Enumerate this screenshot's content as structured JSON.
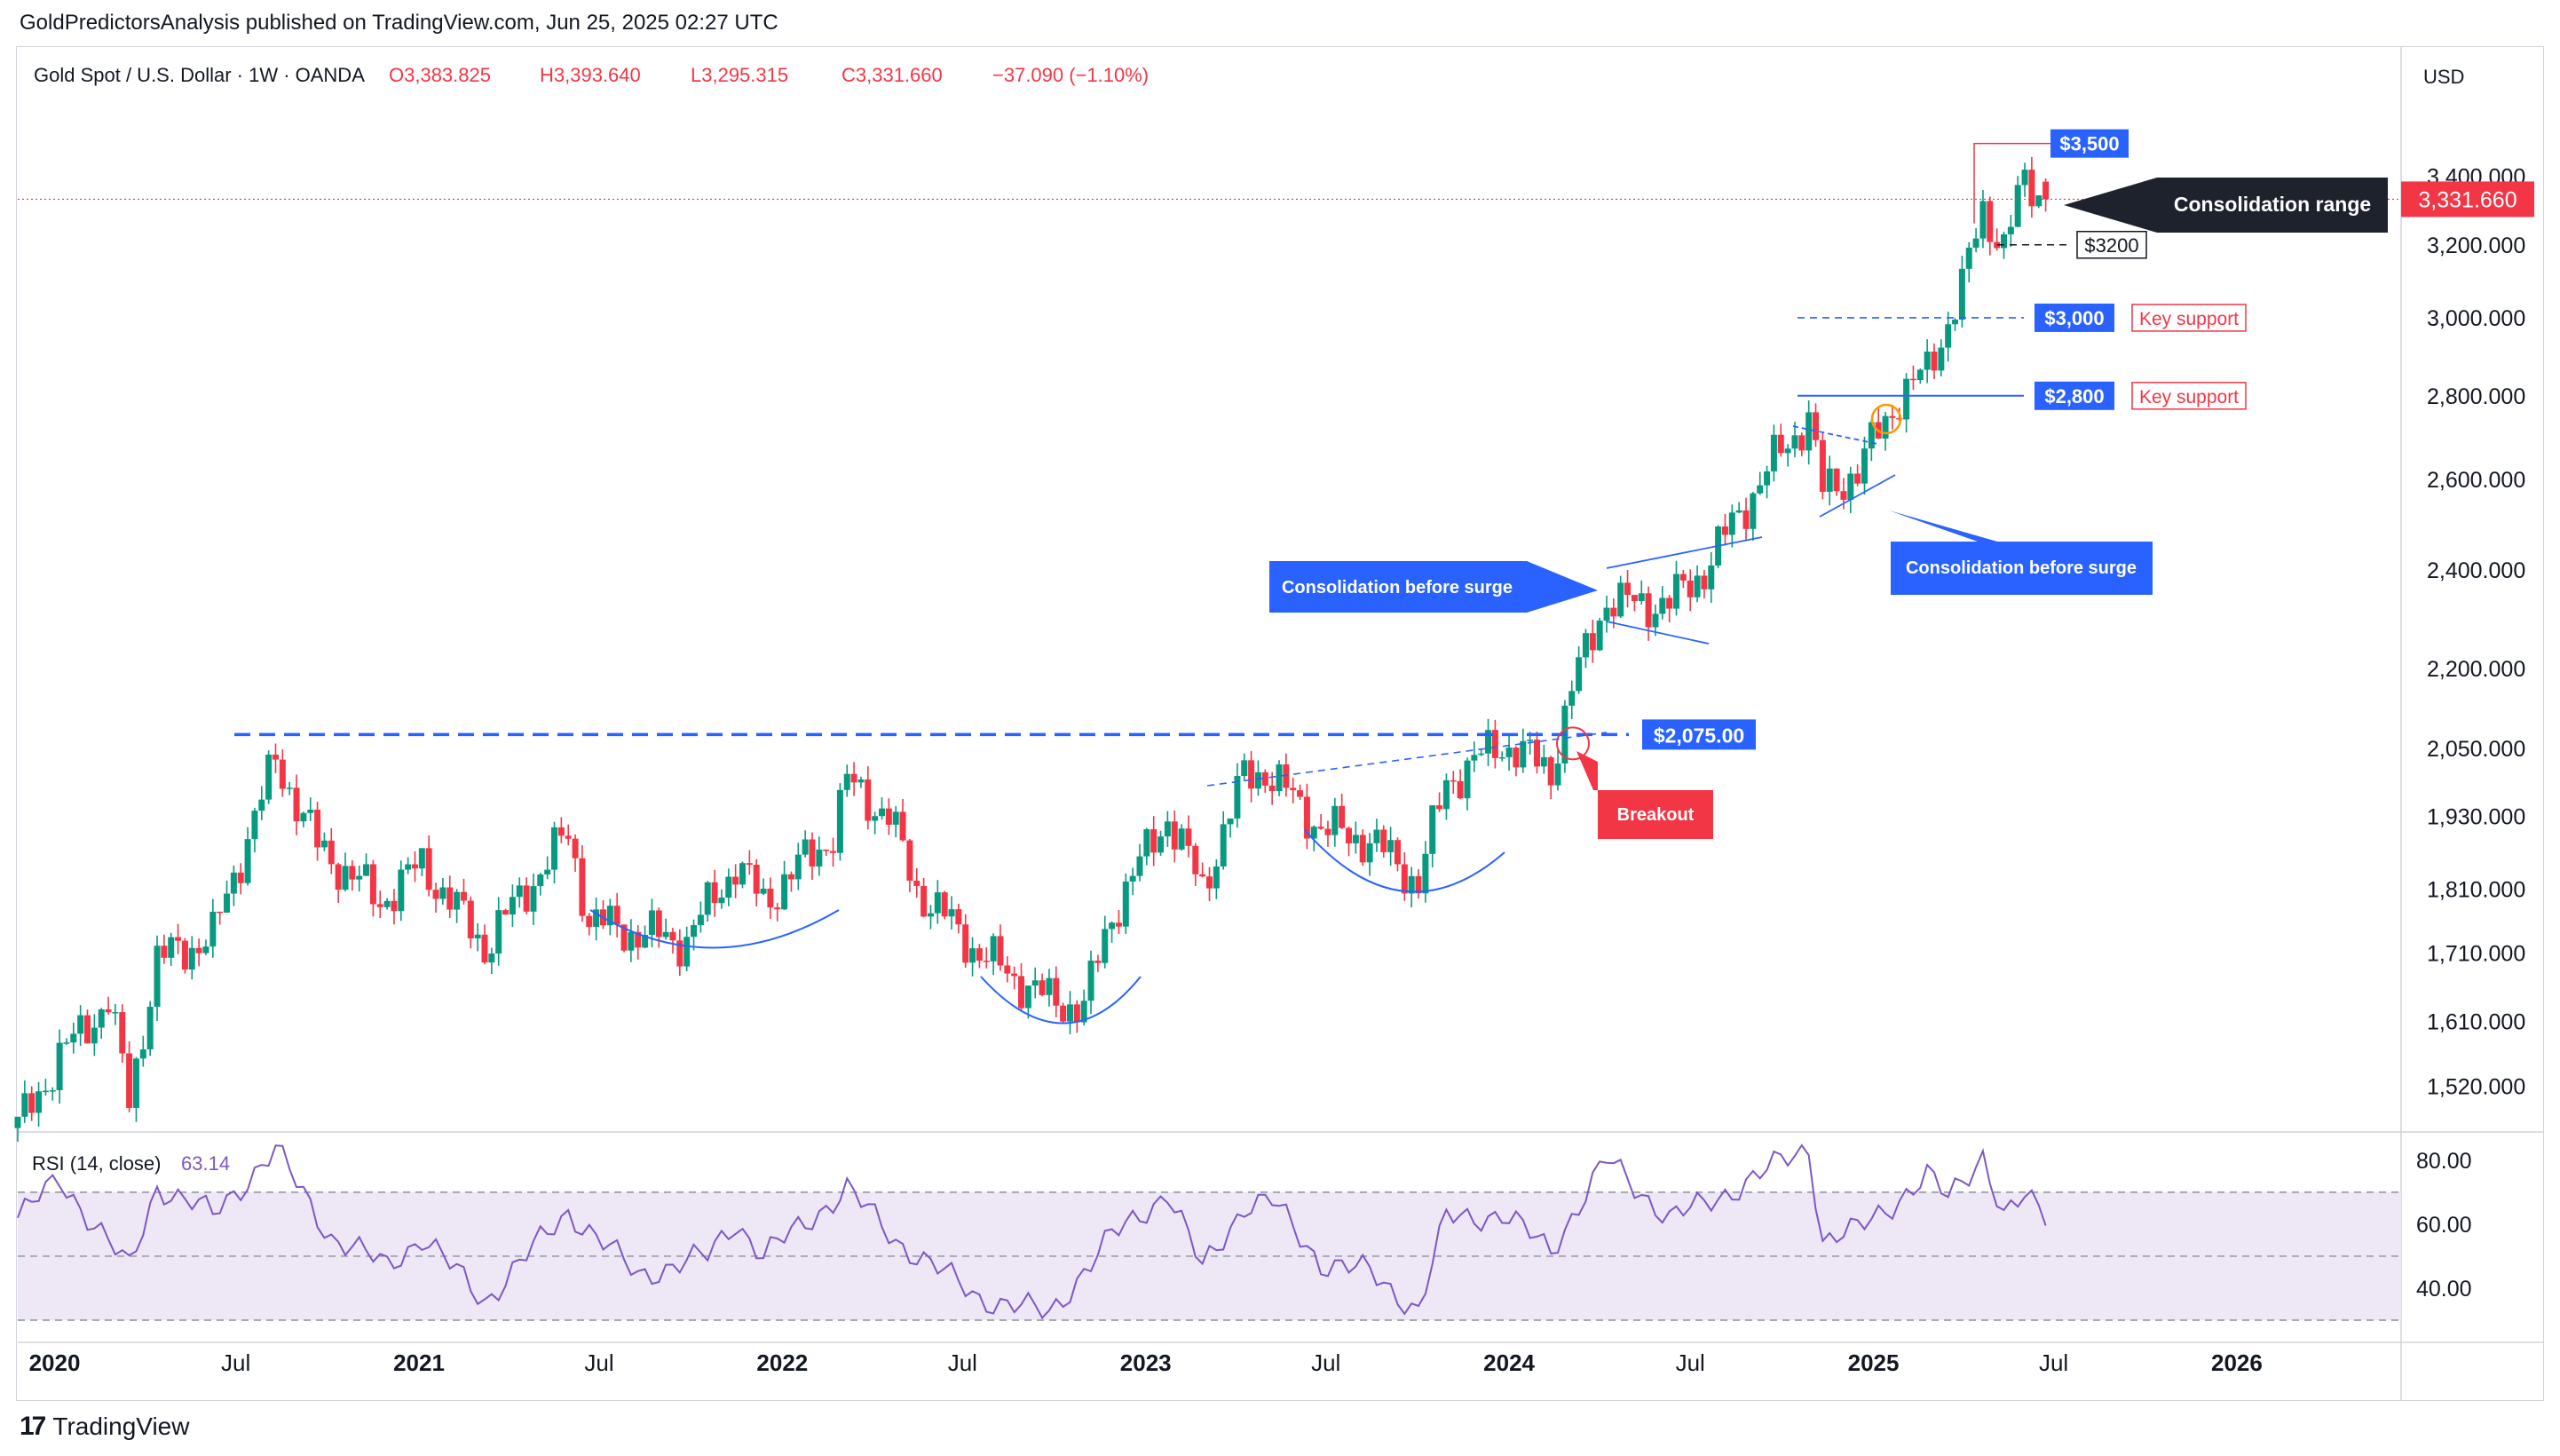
{
  "header": {
    "publisher": "GoldPredictorsAnalysis published on TradingView.com, Jun 25, 2025 02:27 UTC"
  },
  "legend": {
    "symbol": "Gold Spot / U.S. Dollar · 1W · OANDA",
    "open": "O3,383.825",
    "high": "H3,393.640",
    "low": "L3,295.315",
    "close": "C3,331.660",
    "change": "−37.090 (−1.10%)"
  },
  "currency": "USD",
  "footer": {
    "brand": "TradingView"
  },
  "colors": {
    "up": "#089981",
    "down": "#f23645",
    "blue": "#2962ff",
    "rsi_line": "#7e57c2",
    "rsi_fill": "#ede7f6",
    "last_price": "#f23645",
    "dark_label": "#1e222d"
  },
  "chart_data": [
    {
      "type": "candlestick",
      "timeframe": "1W",
      "y_axis": {
        "ticks": [
          "3,400.000",
          "3,200.000",
          "3,000.000",
          "2,800.000",
          "2,600.000",
          "2,400.000",
          "2,200.000",
          "2,050.000",
          "1,930.000",
          "1,810.000",
          "1,710.000",
          "1,610.000",
          "1,520.000"
        ],
        "tick_values": [
          3400,
          3200,
          3000,
          2800,
          2600,
          2400,
          2200,
          2050,
          1930,
          1810,
          1710,
          1610,
          1520
        ],
        "scale": "log",
        "range": [
          1460,
          3560
        ]
      },
      "x_axis": {
        "ticks": [
          "2020",
          "Jul",
          "2021",
          "Jul",
          "2022",
          "Jul",
          "2023",
          "Jul",
          "2024",
          "Jul",
          "2025",
          "Jul",
          "2026"
        ],
        "tick_dates": [
          "2020-01-01",
          "2020-07-01",
          "2021-01-01",
          "2021-07-01",
          "2022-01-01",
          "2022-07-01",
          "2023-01-01",
          "2023-07-01",
          "2024-01-01",
          "2024-07-01",
          "2025-01-01",
          "2025-07-01",
          "2026-01-01"
        ],
        "range": [
          "2019-11-25",
          "2026-06-15"
        ]
      },
      "close_path": [
        {
          "date": "2019-11-25",
          "close": 1465
        },
        {
          "date": "2020-01-06",
          "close": 1560
        },
        {
          "date": "2020-02-24",
          "close": 1640
        },
        {
          "date": "2020-03-16",
          "close": 1500
        },
        {
          "date": "2020-04-13",
          "close": 1700
        },
        {
          "date": "2020-06-08",
          "close": 1735
        },
        {
          "date": "2020-07-27",
          "close": 1960
        },
        {
          "date": "2020-08-10",
          "close": 2030
        },
        {
          "date": "2020-09-21",
          "close": 1880
        },
        {
          "date": "2020-11-23",
          "close": 1790
        },
        {
          "date": "2021-01-04",
          "close": 1850
        },
        {
          "date": "2021-03-08",
          "close": 1720
        },
        {
          "date": "2021-05-31",
          "close": 1900
        },
        {
          "date": "2021-06-21",
          "close": 1760
        },
        {
          "date": "2021-08-09",
          "close": 1740
        },
        {
          "date": "2021-09-27",
          "close": 1730
        },
        {
          "date": "2021-11-15",
          "close": 1850
        },
        {
          "date": "2021-12-13",
          "close": 1790
        },
        {
          "date": "2022-02-21",
          "close": 1900
        },
        {
          "date": "2022-03-07",
          "close": 1990
        },
        {
          "date": "2022-04-18",
          "close": 1930
        },
        {
          "date": "2022-05-16",
          "close": 1810
        },
        {
          "date": "2022-07-18",
          "close": 1710
        },
        {
          "date": "2022-09-26",
          "close": 1640
        },
        {
          "date": "2022-10-31",
          "close": 1630
        },
        {
          "date": "2022-11-28",
          "close": 1770
        },
        {
          "date": "2023-01-23",
          "close": 1930
        },
        {
          "date": "2023-02-27",
          "close": 1810
        },
        {
          "date": "2023-04-10",
          "close": 2000
        },
        {
          "date": "2023-05-01",
          "close": 2010
        },
        {
          "date": "2023-06-26",
          "close": 1910
        },
        {
          "date": "2023-08-14",
          "close": 1890
        },
        {
          "date": "2023-10-02",
          "close": 1820
        },
        {
          "date": "2023-10-30",
          "close": 1990
        },
        {
          "date": "2023-12-25",
          "close": 2060
        },
        {
          "date": "2024-02-12",
          "close": 2010
        },
        {
          "date": "2024-03-04",
          "close": 2160
        },
        {
          "date": "2024-04-08",
          "close": 2340
        },
        {
          "date": "2024-04-22",
          "close": 2330
        },
        {
          "date": "2024-06-10",
          "close": 2330
        },
        {
          "date": "2024-07-15",
          "close": 2400
        },
        {
          "date": "2024-09-16",
          "close": 2620
        },
        {
          "date": "2024-10-28",
          "close": 2750
        },
        {
          "date": "2024-11-11",
          "close": 2570
        },
        {
          "date": "2024-12-16",
          "close": 2620
        },
        {
          "date": "2025-01-27",
          "close": 2800
        },
        {
          "date": "2025-02-24",
          "close": 2860
        },
        {
          "date": "2025-03-31",
          "close": 3080
        },
        {
          "date": "2025-04-21",
          "close": 3300
        },
        {
          "date": "2025-05-12",
          "close": 3200
        },
        {
          "date": "2025-06-02",
          "close": 3380
        },
        {
          "date": "2025-06-23",
          "close": 3331.66
        }
      ],
      "last_price": {
        "value": 3331.66,
        "label": "3,331.660"
      },
      "levels": [
        {
          "label": "$3,500",
          "value": 3500
        },
        {
          "label": "$3200",
          "value": 3200
        },
        {
          "label": "$3,000",
          "value": 3000,
          "note": "Key support"
        },
        {
          "label": "$2,800",
          "value": 2800,
          "note": "Key support"
        },
        {
          "label": "$2,075.00",
          "value": 2075
        }
      ],
      "annotations": [
        {
          "text": "Consolidation range"
        },
        {
          "text": "Consolidation before surge"
        },
        {
          "text": "Consolidation before surge"
        },
        {
          "text": "Breakout"
        }
      ]
    },
    {
      "type": "line",
      "title": "RSI (14, close)",
      "value": "63.14",
      "y_axis": {
        "ticks": [
          "80.00",
          "60.00",
          "40.00"
        ],
        "tick_values": [
          80,
          60,
          40
        ],
        "range": [
          25,
          88
        ]
      },
      "bands": [
        70,
        50,
        30
      ],
      "series": [
        {
          "date": "2019-11-25",
          "rsi": 62
        },
        {
          "date": "2020-01-06",
          "rsi": 74
        },
        {
          "date": "2020-03-16",
          "rsi": 46
        },
        {
          "date": "2020-04-13",
          "rsi": 72
        },
        {
          "date": "2020-06-08",
          "rsi": 63
        },
        {
          "date": "2020-08-10",
          "rsi": 83
        },
        {
          "date": "2020-10-05",
          "rsi": 56
        },
        {
          "date": "2020-11-30",
          "rsi": 47
        },
        {
          "date": "2021-01-04",
          "rsi": 56
        },
        {
          "date": "2021-03-08",
          "rsi": 36
        },
        {
          "date": "2021-05-31",
          "rsi": 64
        },
        {
          "date": "2021-08-09",
          "rsi": 44
        },
        {
          "date": "2021-10-18",
          "rsi": 50
        },
        {
          "date": "2021-11-15",
          "rsi": 61
        },
        {
          "date": "2021-12-13",
          "rsi": 50
        },
        {
          "date": "2022-03-07",
          "rsi": 71
        },
        {
          "date": "2022-04-25",
          "rsi": 55
        },
        {
          "date": "2022-07-18",
          "rsi": 37
        },
        {
          "date": "2022-09-26",
          "rsi": 32
        },
        {
          "date": "2022-11-28",
          "rsi": 56
        },
        {
          "date": "2023-01-23",
          "rsi": 70
        },
        {
          "date": "2023-02-27",
          "rsi": 46
        },
        {
          "date": "2023-04-10",
          "rsi": 66
        },
        {
          "date": "2023-05-08",
          "rsi": 67
        },
        {
          "date": "2023-06-26",
          "rsi": 48
        },
        {
          "date": "2023-08-14",
          "rsi": 45
        },
        {
          "date": "2023-10-02",
          "rsi": 33
        },
        {
          "date": "2023-10-30",
          "rsi": 62
        },
        {
          "date": "2023-12-25",
          "rsi": 63
        },
        {
          "date": "2024-02-12",
          "rsi": 52
        },
        {
          "date": "2024-04-08",
          "rsi": 80
        },
        {
          "date": "2024-06-10",
          "rsi": 62
        },
        {
          "date": "2024-07-15",
          "rsi": 66
        },
        {
          "date": "2024-10-28",
          "rsi": 84
        },
        {
          "date": "2024-11-11",
          "rsi": 55
        },
        {
          "date": "2024-12-16",
          "rsi": 58
        },
        {
          "date": "2025-02-24",
          "rsi": 75
        },
        {
          "date": "2025-03-17",
          "rsi": 68
        },
        {
          "date": "2025-04-21",
          "rsi": 82
        },
        {
          "date": "2025-05-12",
          "rsi": 62
        },
        {
          "date": "2025-06-02",
          "rsi": 68
        },
        {
          "date": "2025-06-23",
          "rsi": 63.14
        }
      ]
    }
  ]
}
